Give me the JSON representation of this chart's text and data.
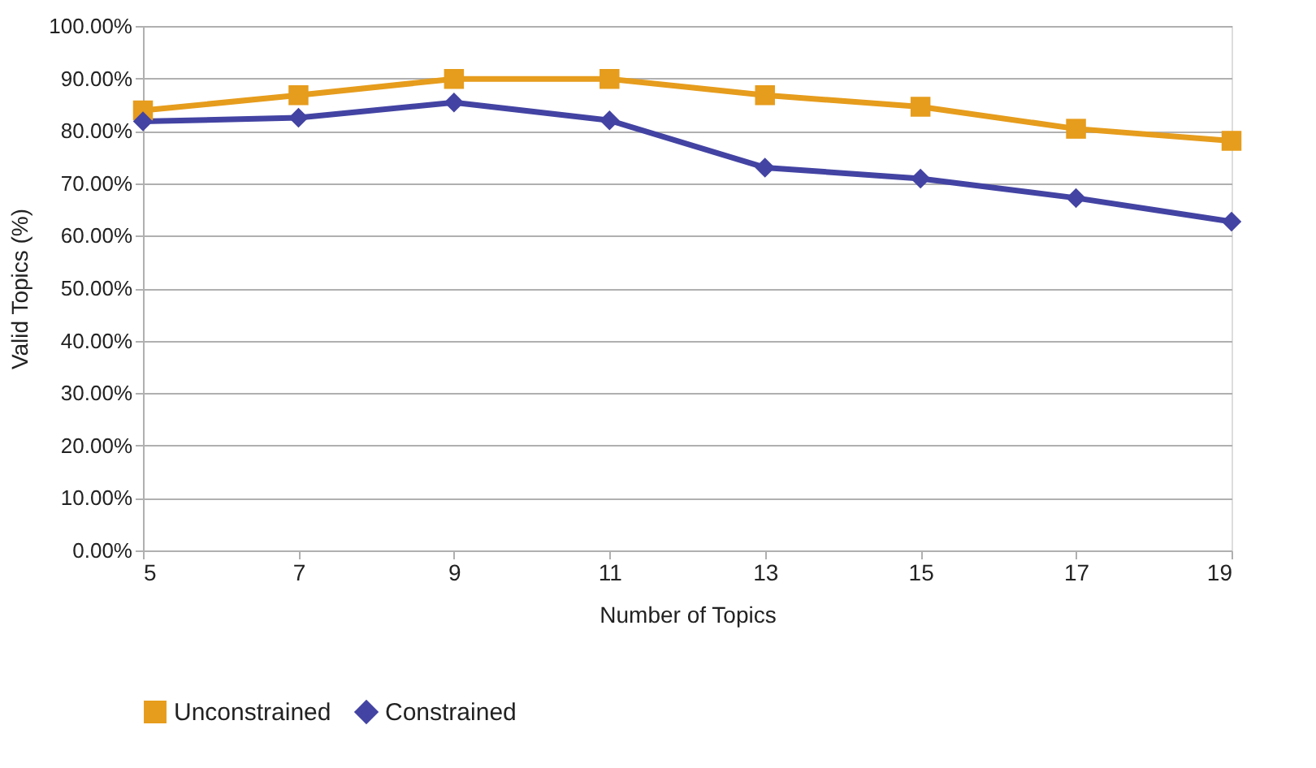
{
  "chart_data": {
    "type": "line",
    "xlabel": "Number of Topics",
    "ylabel": "Valid Topics (%)",
    "x": [
      5,
      7,
      9,
      11,
      13,
      15,
      17,
      19
    ],
    "series": [
      {
        "name": "Unconstrained",
        "color": "#e69c1c",
        "marker": "square",
        "values": [
          83.9,
          86.8,
          89.9,
          89.9,
          86.8,
          84.6,
          80.4,
          78.1
        ]
      },
      {
        "name": "Constrained",
        "color": "#4343a3",
        "marker": "diamond",
        "values": [
          81.8,
          82.5,
          85.4,
          82.0,
          73.0,
          70.9,
          67.2,
          62.7
        ]
      }
    ],
    "xlim": [
      5,
      19
    ],
    "xticks": [
      5,
      7,
      9,
      11,
      13,
      15,
      17,
      19
    ],
    "ylim": [
      0,
      100
    ],
    "yticks": [
      {
        "value": 0,
        "label": "0.00%"
      },
      {
        "value": 10,
        "label": "10.00%"
      },
      {
        "value": 20,
        "label": "20.00%"
      },
      {
        "value": 30,
        "label": "30.00%"
      },
      {
        "value": 40,
        "label": "40.00%"
      },
      {
        "value": 50,
        "label": "50.00%"
      },
      {
        "value": 60,
        "label": "60.00%"
      },
      {
        "value": 70,
        "label": "70.00%"
      },
      {
        "value": 80,
        "label": "80.00%"
      },
      {
        "value": 90,
        "label": "90.00%"
      },
      {
        "value": 100,
        "label": "100.00%"
      }
    ],
    "grid": "y",
    "legend": "bottom",
    "line_style": "solid"
  }
}
